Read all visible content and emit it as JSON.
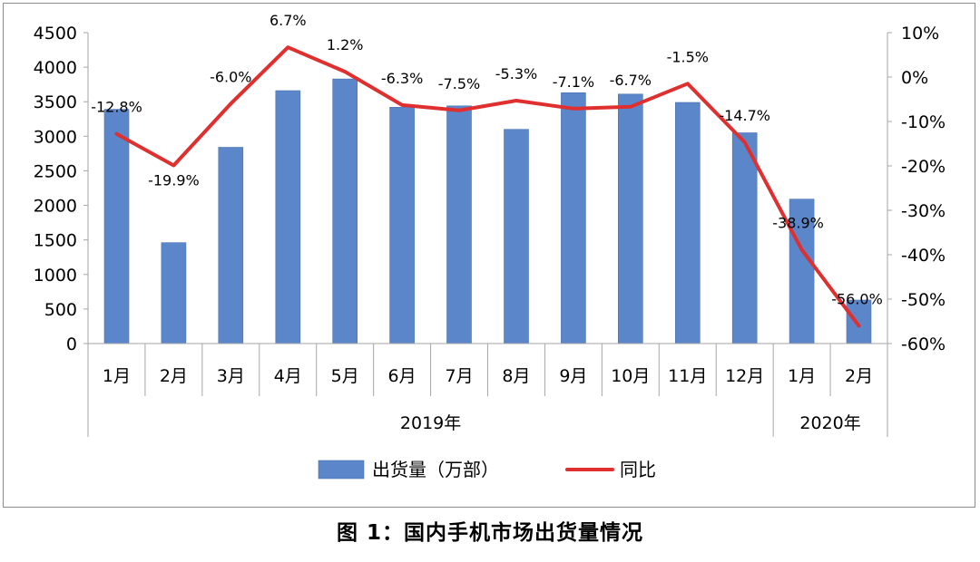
{
  "caption": "图 1：国内手机市场出货量情况",
  "colors": {
    "bar": "#5b86c9",
    "line": "#e02f2f",
    "axis": "#a6a6a6",
    "text": "#000000"
  },
  "chart_data": {
    "type": "bar+line",
    "title": "",
    "categories": [
      "1月",
      "2月",
      "3月",
      "4月",
      "5月",
      "6月",
      "7月",
      "8月",
      "9月",
      "10月",
      "11月",
      "12月",
      "1月",
      "2月"
    ],
    "year_groups": [
      {
        "label": "2019年",
        "count": 12
      },
      {
        "label": "2020年",
        "count": 2
      }
    ],
    "series": [
      {
        "name": "出货量（万部）",
        "type": "bar",
        "axis": "left",
        "values": [
          3390,
          1460,
          2840,
          3660,
          3830,
          3420,
          3440,
          3100,
          3630,
          3610,
          3490,
          3050,
          2090,
          630
        ]
      },
      {
        "name": "同比",
        "type": "line",
        "axis": "right",
        "values": [
          -12.8,
          -19.9,
          -6.0,
          6.7,
          1.2,
          -6.3,
          -7.5,
          -5.3,
          -7.1,
          -6.7,
          -1.5,
          -14.7,
          -38.9,
          -56.0
        ],
        "data_labels": [
          "-12.8%",
          "-19.9%",
          "-6.0%",
          "6.7%",
          "1.2%",
          "-6.3%",
          "-7.5%",
          "-5.3%",
          "-7.1%",
          "-6.7%",
          "-1.5%",
          "-14.7%",
          "-38.9%",
          "-56.0%"
        ]
      }
    ],
    "y_left": {
      "min": 0,
      "max": 4500,
      "ticks": [
        "0",
        "500",
        "1000",
        "1500",
        "2000",
        "2500",
        "3000",
        "3500",
        "4000",
        "4500"
      ]
    },
    "y_right": {
      "min": -60,
      "max": 10,
      "ticks": [
        "-60%",
        "-50%",
        "-40%",
        "-30%",
        "-20%",
        "-10%",
        "0%",
        "10%"
      ]
    },
    "grid": false,
    "legend_position": "bottom"
  }
}
